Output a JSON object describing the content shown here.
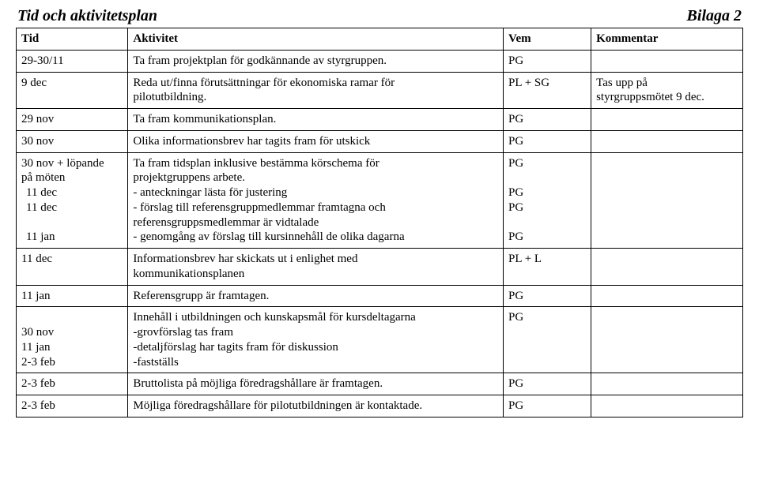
{
  "header": {
    "title_left": "Tid och aktivitetsplan",
    "title_right": "Bilaga 2"
  },
  "columns": {
    "tid": "Tid",
    "aktivitet": "Aktivitet",
    "vem": "Vem",
    "kommentar": "Kommentar"
  },
  "rows": {
    "r1": {
      "tid": "29-30/11",
      "aktivitet": "Ta fram projektplan för godkännande av styrgruppen.",
      "vem": "PG",
      "kommentar": ""
    },
    "r2": {
      "tid": "9 dec",
      "aktivitet_l1": "Reda ut/finna förutsättningar för ekonomiska ramar för",
      "aktivitet_l2": "pilotutbildning.",
      "vem": "PL + SG",
      "kommentar_l1": "Tas upp på",
      "kommentar_l2": "styrgruppsmötet 9 dec."
    },
    "r3": {
      "tid": "29 nov",
      "aktivitet": "Ta fram kommunikationsplan.",
      "vem": "PG",
      "kommentar": ""
    },
    "r4": {
      "tid": "30 nov",
      "aktivitet": "Olika informationsbrev har tagits fram för utskick",
      "vem": "PG",
      "kommentar": ""
    },
    "r5": {
      "tid_l1": "30 nov + löpande",
      "tid_l2": "på möten",
      "tid_l3": " 11 dec",
      "tid_l4": " 11 dec",
      "tid_l5": "",
      "tid_l6": " 11 jan",
      "akt_l1": "Ta fram tidsplan inklusive bestämma körschema för",
      "akt_l2": "projektgruppens arbete.",
      "akt_l3": "- anteckningar lästa för justering",
      "akt_l4": "- förslag till referensgruppmedlemmar framtagna och",
      "akt_l5": "referensgruppsmedlemmar är vidtalade",
      "akt_l6": "- genomgång av förslag till kursinnehåll de olika dagarna",
      "vem_l1": "PG",
      "vem_l2": "",
      "vem_l3": "PG",
      "vem_l4": "PG",
      "vem_l5": "",
      "vem_l6": "PG",
      "kommentar": ""
    },
    "r6": {
      "tid": "11 dec",
      "aktivitet_l1": "Informationsbrev har skickats ut i enlighet med",
      "aktivitet_l2": "kommunikationsplanen",
      "vem": "PL + L",
      "kommentar": ""
    },
    "r7": {
      "tid": "11 jan",
      "aktivitet": "Referensgrupp är framtagen.",
      "vem": "PG",
      "kommentar": ""
    },
    "r8": {
      "tid_l1": "",
      "tid_l2": "30 nov",
      "tid_l3": "11 jan",
      "tid_l4": "2-3 feb",
      "akt_l1": "Innehåll i utbildningen och kunskapsmål för kursdeltagarna",
      "akt_l2": "-grovförslag tas fram",
      "akt_l3": "-detaljförslag har tagits fram för diskussion",
      "akt_l4": "-fastställs",
      "vem": "PG",
      "kommentar": ""
    },
    "r9": {
      "tid": "2-3 feb",
      "aktivitet": "Bruttolista på möjliga föredragshållare är framtagen.",
      "vem": "PG",
      "kommentar": ""
    },
    "r10": {
      "tid": "2-3 feb",
      "aktivitet": "Möjliga föredragshållare för pilotutbildningen är kontaktade.",
      "vem": "PG",
      "kommentar": ""
    }
  }
}
